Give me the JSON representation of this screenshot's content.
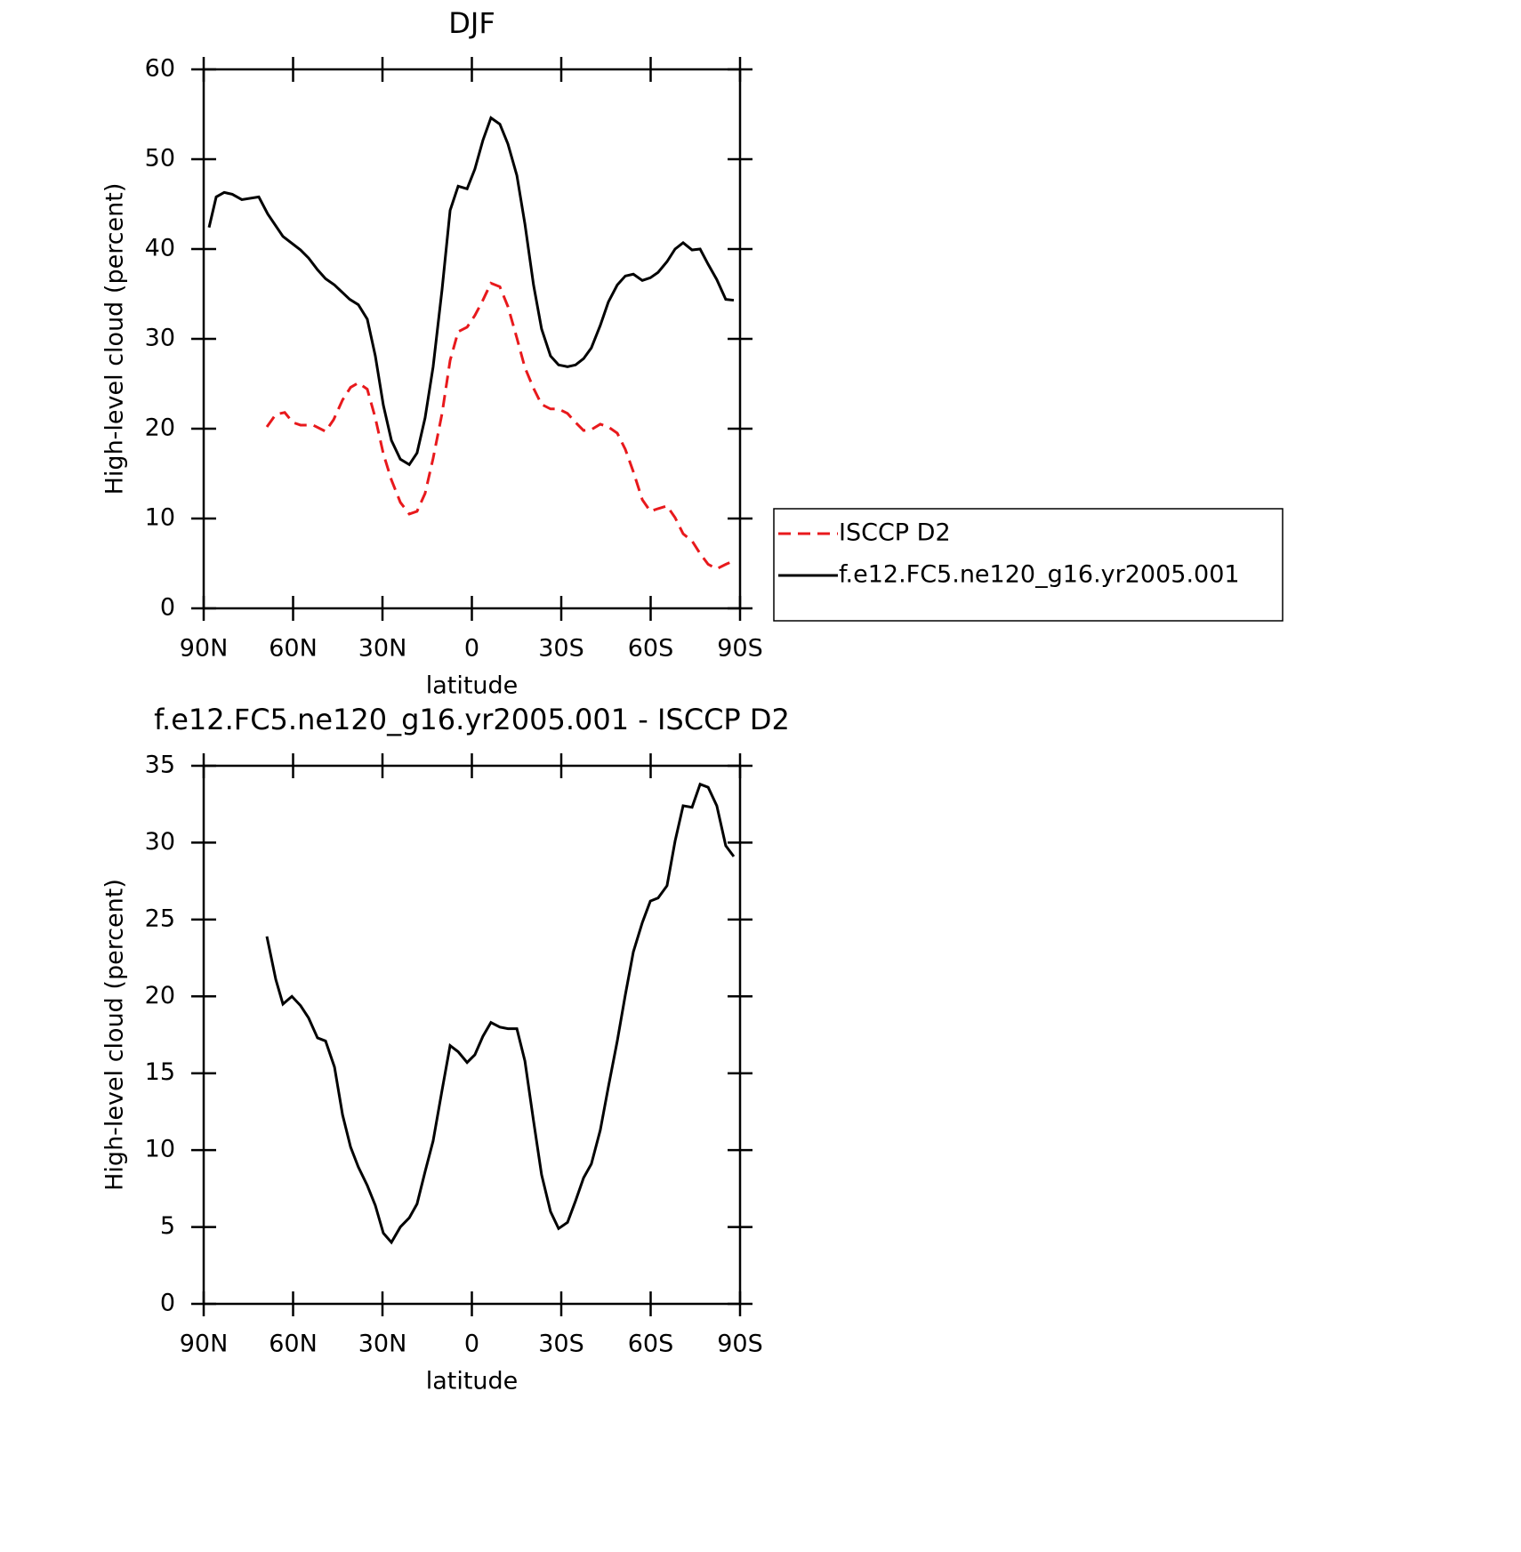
{
  "chart_data": [
    {
      "type": "line",
      "title": "DJF",
      "xlabel": "latitude",
      "ylabel": "High-level cloud (percent)",
      "xlim": [
        90,
        -90
      ],
      "xticks": [
        {
          "value": 90,
          "label": "90N"
        },
        {
          "value": 60,
          "label": "60N"
        },
        {
          "value": 30,
          "label": "30N"
        },
        0,
        {
          "value": -30,
          "label": "30S"
        },
        {
          "value": -60,
          "label": "60S"
        },
        {
          "value": -90,
          "label": "90S"
        }
      ],
      "ylim": [
        0,
        60
      ],
      "yticks": [
        0,
        10,
        20,
        30,
        40,
        50,
        60
      ],
      "legend": "right",
      "series": [
        {
          "name": "ISCCP D2",
          "color": "#e8191c",
          "linestyle": "dashed",
          "x": [
            68.8,
            65.8,
            62.8,
            60.1,
            57.5,
            53.3,
            49.1,
            46.4,
            43.4,
            40.7,
            38.1,
            35.1,
            32.4,
            29.7,
            27.0,
            24.0,
            21.0,
            18.4,
            15.7,
            13.0,
            10.0,
            7.3,
            4.6,
            1.6,
            -1.0,
            -3.7,
            -6.4,
            -9.4,
            -12.1,
            -15.1,
            -17.8,
            -20.7,
            -23.4,
            -26.4,
            -29.1,
            -32.1,
            -34.8,
            -37.5,
            -40.1,
            -43.1,
            -45.8,
            -48.8,
            -51.5,
            -54.2,
            -57.2,
            -59.9,
            -62.5,
            -65.5,
            -68.2,
            -70.9,
            -73.9,
            -76.6,
            -79.3,
            -82.2,
            -85.2,
            -87.9
          ],
          "values": [
            20.2,
            21.6,
            21.8,
            20.7,
            20.4,
            20.4,
            19.7,
            21,
            23.2,
            24.6,
            25.1,
            24.4,
            21.2,
            17.2,
            14.3,
            11.8,
            10.5,
            10.8,
            12.8,
            16.7,
            21.7,
            27.6,
            30.8,
            31.3,
            32.6,
            34.3,
            36.2,
            35.8,
            33.6,
            30.1,
            26.8,
            24.5,
            22.7,
            22.2,
            22.2,
            21.7,
            20.7,
            19.8,
            19.9,
            20.5,
            20.2,
            19.5,
            17.7,
            15.2,
            12.1,
            10.8,
            11.1,
            11.4,
            10.1,
            8.3,
            7.5,
            6.1,
            4.9,
            4.4,
            4.9,
            5.3
          ]
        },
        {
          "name": "f.e12.FC5.ne120_g16.yr2005.001",
          "color": "#000000",
          "linestyle": "solid",
          "x": [
            88.2,
            85.8,
            83.1,
            80.4,
            77.2,
            71.5,
            68.5,
            63.4,
            57.5,
            54.8,
            51.8,
            49.1,
            46.1,
            41.0,
            38.1,
            35.1,
            32.4,
            29.7,
            27.0,
            24.0,
            21.0,
            18.4,
            15.7,
            13.0,
            10.0,
            7.3,
            4.6,
            1.6,
            -1.0,
            -3.7,
            -6.4,
            -9.4,
            -12.1,
            -15.1,
            -17.8,
            -20.7,
            -23.4,
            -26.4,
            -29.1,
            -32.1,
            -34.8,
            -37.5,
            -40.1,
            -43.1,
            -45.8,
            -48.8,
            -51.5,
            -54.2,
            -57.2,
            -59.9,
            -62.5,
            -65.5,
            -68.2,
            -70.9,
            -73.9,
            -76.6,
            -79.3,
            -82.2,
            -85.2,
            -87.9
          ],
          "values": [
            42.4,
            45.8,
            46.3,
            46.1,
            45.5,
            45.8,
            43.9,
            41.4,
            39.9,
            39,
            37.7,
            36.7,
            36,
            34.4,
            33.8,
            32.2,
            28.1,
            22.6,
            18.7,
            16.6,
            16,
            17.3,
            21.2,
            26.9,
            35.5,
            44.3,
            47,
            46.7,
            48.9,
            52.1,
            54.6,
            53.9,
            51.7,
            48.2,
            42.8,
            36,
            31.1,
            28.1,
            27.1,
            26.9,
            27.1,
            27.8,
            29,
            31.5,
            34.1,
            36,
            37,
            37.2,
            36.5,
            36.8,
            37.4,
            38.6,
            40,
            40.7,
            39.9,
            40,
            38.3,
            36.6,
            34.4,
            34.3
          ]
        }
      ]
    },
    {
      "type": "line",
      "title": "f.e12.FC5.ne120_g16.yr2005.001 - ISCCP D2",
      "xlabel": "latitude",
      "ylabel": "High-level cloud (percent)",
      "xlim": [
        90,
        -90
      ],
      "xticks": [
        {
          "value": 90,
          "label": "90N"
        },
        {
          "value": 60,
          "label": "60N"
        },
        {
          "value": 30,
          "label": "30N"
        },
        0,
        {
          "value": -30,
          "label": "30S"
        },
        {
          "value": -60,
          "label": "60S"
        },
        {
          "value": -90,
          "label": "90S"
        }
      ],
      "ylim": [
        0,
        35
      ],
      "yticks": [
        0,
        5,
        10,
        15,
        20,
        25,
        30,
        35
      ],
      "series": [
        {
          "color": "#000000",
          "linestyle": "solid",
          "x": [
            68.8,
            65.8,
            63.4,
            60.4,
            57.5,
            54.8,
            51.8,
            49.1,
            46.1,
            43.4,
            40.7,
            38.1,
            35.1,
            32.4,
            29.7,
            27.0,
            24.0,
            21.0,
            18.4,
            15.7,
            13.0,
            10.0,
            7.3,
            4.6,
            1.6,
            -1.0,
            -3.7,
            -6.4,
            -9.4,
            -12.1,
            -15.1,
            -17.8,
            -20.7,
            -23.4,
            -26.4,
            -29.1,
            -32.1,
            -34.8,
            -37.5,
            -40.1,
            -43.1,
            -45.8,
            -48.8,
            -51.5,
            -54.2,
            -57.2,
            -59.9,
            -62.5,
            -65.5,
            -68.2,
            -70.9,
            -73.9,
            -76.6,
            -79.3,
            -82.2,
            -85.2,
            -87.9
          ],
          "values": [
            23.9,
            21.1,
            19.5,
            20,
            19.4,
            18.6,
            17.3,
            17.1,
            15.4,
            12.3,
            10.2,
            8.9,
            7.7,
            6.4,
            4.6,
            4.0,
            5.0,
            5.6,
            6.5,
            8.6,
            10.6,
            13.9,
            16.8,
            16.4,
            15.7,
            16.2,
            17.4,
            18.3,
            18.0,
            17.9,
            17.9,
            15.8,
            11.9,
            8.4,
            6.0,
            4.9,
            5.3,
            6.7,
            8.2,
            9.1,
            11.3,
            14.1,
            17.1,
            20.1,
            22.9,
            24.8,
            26.2,
            26.4,
            27.2,
            30.1,
            32.4,
            32.3,
            33.8,
            33.6,
            32.4,
            29.8,
            29.1
          ]
        }
      ]
    }
  ]
}
